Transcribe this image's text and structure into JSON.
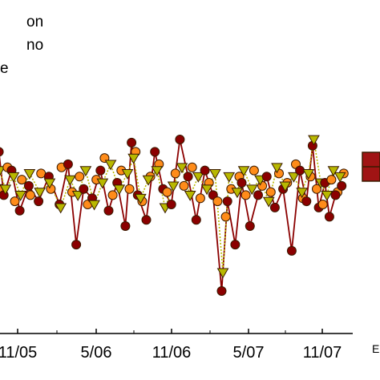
{
  "legend": {
    "entries": [
      {
        "label": "on",
        "marker": "circle",
        "color": "#8b0000"
      },
      {
        "label": "no",
        "marker": "circle",
        "color": "#ff8c1a"
      },
      {
        "label": "e",
        "marker": "triangle-down",
        "color": "#b8b800"
      }
    ]
  },
  "x_axis": {
    "tick_labels": [
      "11/05",
      "5/06",
      "11/06",
      "5/07",
      "11/07"
    ],
    "label_cut": "E"
  },
  "colors": {
    "dark_red": "#8b0000",
    "orange": "#ff8c1a",
    "olive_yellow": "#b8b800",
    "outline": "#3a1a00",
    "inset_box": "#a01414"
  },
  "chart_data": {
    "type": "scatter",
    "title": "",
    "xlabel": "E",
    "ylabel": "",
    "x_ticks": [
      "11/05",
      "5/06",
      "11/06",
      "5/07",
      "11/07"
    ],
    "series": [
      {
        "name": "on",
        "connected": true,
        "line_style": "solid",
        "color": "#8b0000",
        "points": [
          [
            "2005-08-20",
            0.52
          ],
          [
            "2005-09-01",
            0.38
          ],
          [
            "2005-09-20",
            0.46
          ],
          [
            "2005-10-10",
            0.33
          ],
          [
            "2005-11-01",
            0.41
          ],
          [
            "2005-11-25",
            0.36
          ],
          [
            "2005-12-20",
            0.44
          ],
          [
            "2006-01-15",
            0.35
          ],
          [
            "2006-02-05",
            0.48
          ],
          [
            "2006-02-25",
            0.22
          ],
          [
            "2006-03-15",
            0.4
          ],
          [
            "2006-04-05",
            0.37
          ],
          [
            "2006-04-25",
            0.46
          ],
          [
            "2006-05-15",
            0.33
          ],
          [
            "2006-06-05",
            0.42
          ],
          [
            "2006-06-25",
            0.28
          ],
          [
            "2006-07-10",
            0.55
          ],
          [
            "2006-07-25",
            0.38
          ],
          [
            "2006-08-15",
            0.3
          ],
          [
            "2006-09-05",
            0.52
          ],
          [
            "2006-09-25",
            0.4
          ],
          [
            "2006-10-15",
            0.35
          ],
          [
            "2006-11-05",
            0.56
          ],
          [
            "2006-11-25",
            0.44
          ],
          [
            "2006-12-15",
            0.3
          ],
          [
            "2007-01-05",
            0.46
          ],
          [
            "2007-01-25",
            0.38
          ],
          [
            "2007-02-15",
            0.07
          ],
          [
            "2007-03-01",
            0.36
          ],
          [
            "2007-03-20",
            0.22
          ],
          [
            "2007-04-05",
            0.42
          ],
          [
            "2007-04-25",
            0.28
          ],
          [
            "2007-05-15",
            0.38
          ],
          [
            "2007-06-05",
            0.44
          ],
          [
            "2007-06-25",
            0.34
          ],
          [
            "2007-07-15",
            0.4
          ],
          [
            "2007-08-05",
            0.2
          ],
          [
            "2007-08-25",
            0.46
          ],
          [
            "2007-09-10",
            0.36
          ],
          [
            "2007-09-25",
            0.54
          ],
          [
            "2007-10-10",
            0.34
          ],
          [
            "2007-10-25",
            0.42
          ],
          [
            "2007-11-05",
            0.31
          ],
          [
            "2007-11-20",
            0.38
          ],
          [
            "2007-12-05",
            0.41
          ]
        ]
      },
      {
        "name": "no",
        "connected": false,
        "line_style": "none",
        "color": "#ff8c1a",
        "points": [
          [
            "2005-08-25",
            0.4
          ],
          [
            "2005-09-10",
            0.47
          ],
          [
            "2005-09-28",
            0.36
          ],
          [
            "2005-10-15",
            0.43
          ],
          [
            "2005-11-05",
            0.38
          ],
          [
            "2005-12-01",
            0.45
          ],
          [
            "2005-12-25",
            0.4
          ],
          [
            "2006-01-20",
            0.47
          ],
          [
            "2006-02-15",
            0.39
          ],
          [
            "2006-03-05",
            0.44
          ],
          [
            "2006-03-25",
            0.35
          ],
          [
            "2006-04-15",
            0.43
          ],
          [
            "2006-05-05",
            0.5
          ],
          [
            "2006-05-25",
            0.38
          ],
          [
            "2006-06-15",
            0.46
          ],
          [
            "2006-07-05",
            0.4
          ],
          [
            "2006-07-20",
            0.52
          ],
          [
            "2006-08-05",
            0.36
          ],
          [
            "2006-08-25",
            0.44
          ],
          [
            "2006-09-15",
            0.48
          ],
          [
            "2006-10-05",
            0.39
          ],
          [
            "2006-10-25",
            0.45
          ],
          [
            "2006-11-15",
            0.41
          ],
          [
            "2006-12-05",
            0.47
          ],
          [
            "2006-12-25",
            0.37
          ],
          [
            "2007-01-15",
            0.42
          ],
          [
            "2007-02-05",
            0.36
          ],
          [
            "2007-02-25",
            0.31
          ],
          [
            "2007-03-10",
            0.4
          ],
          [
            "2007-03-30",
            0.44
          ],
          [
            "2007-04-15",
            0.38
          ],
          [
            "2007-05-05",
            0.46
          ],
          [
            "2007-05-25",
            0.41
          ],
          [
            "2007-06-15",
            0.39
          ],
          [
            "2007-07-05",
            0.45
          ],
          [
            "2007-07-25",
            0.42
          ],
          [
            "2007-08-15",
            0.48
          ],
          [
            "2007-09-01",
            0.37
          ],
          [
            "2007-09-20",
            0.44
          ],
          [
            "2007-10-05",
            0.4
          ],
          [
            "2007-10-20",
            0.35
          ],
          [
            "2007-11-10",
            0.43
          ],
          [
            "2007-11-25",
            0.39
          ],
          [
            "2007-12-10",
            0.45
          ]
        ]
      },
      {
        "name": "e",
        "connected": true,
        "line_style": "dotted",
        "color": "#b8b800",
        "points": [
          [
            "2005-08-22",
            0.46
          ],
          [
            "2005-09-05",
            0.4
          ],
          [
            "2005-09-25",
            0.44
          ],
          [
            "2005-10-12",
            0.38
          ],
          [
            "2005-11-03",
            0.45
          ],
          [
            "2005-11-28",
            0.39
          ],
          [
            "2005-12-22",
            0.42
          ],
          [
            "2006-01-18",
            0.34
          ],
          [
            "2006-02-10",
            0.43
          ],
          [
            "2006-03-01",
            0.38
          ],
          [
            "2006-03-20",
            0.46
          ],
          [
            "2006-04-10",
            0.35
          ],
          [
            "2006-04-30",
            0.42
          ],
          [
            "2006-05-20",
            0.48
          ],
          [
            "2006-06-10",
            0.4
          ],
          [
            "2006-06-30",
            0.45
          ],
          [
            "2006-07-15",
            0.5
          ],
          [
            "2006-08-01",
            0.37
          ],
          [
            "2006-08-20",
            0.43
          ],
          [
            "2006-09-10",
            0.46
          ],
          [
            "2006-09-30",
            0.34
          ],
          [
            "2006-10-20",
            0.41
          ],
          [
            "2006-11-10",
            0.47
          ],
          [
            "2006-11-30",
            0.38
          ],
          [
            "2006-12-20",
            0.44
          ],
          [
            "2007-01-10",
            0.4
          ],
          [
            "2007-01-30",
            0.45
          ],
          [
            "2007-02-18",
            0.13
          ],
          [
            "2007-03-05",
            0.44
          ],
          [
            "2007-03-25",
            0.39
          ],
          [
            "2007-04-10",
            0.46
          ],
          [
            "2007-04-30",
            0.4
          ],
          [
            "2007-05-20",
            0.43
          ],
          [
            "2007-06-10",
            0.36
          ],
          [
            "2007-06-30",
            0.47
          ],
          [
            "2007-07-20",
            0.41
          ],
          [
            "2007-08-10",
            0.44
          ],
          [
            "2007-08-30",
            0.39
          ],
          [
            "2007-09-15",
            0.45
          ],
          [
            "2007-09-28",
            0.56
          ],
          [
            "2007-10-15",
            0.42
          ],
          [
            "2007-10-30",
            0.38
          ],
          [
            "2007-11-15",
            0.46
          ],
          [
            "2007-12-01",
            0.44
          ]
        ]
      }
    ],
    "xlim": [
      "2005-08-15",
      "2008-01-01"
    ],
    "ylim": [
      0,
      0.7
    ],
    "grid": false,
    "legend_position": "top-left"
  }
}
